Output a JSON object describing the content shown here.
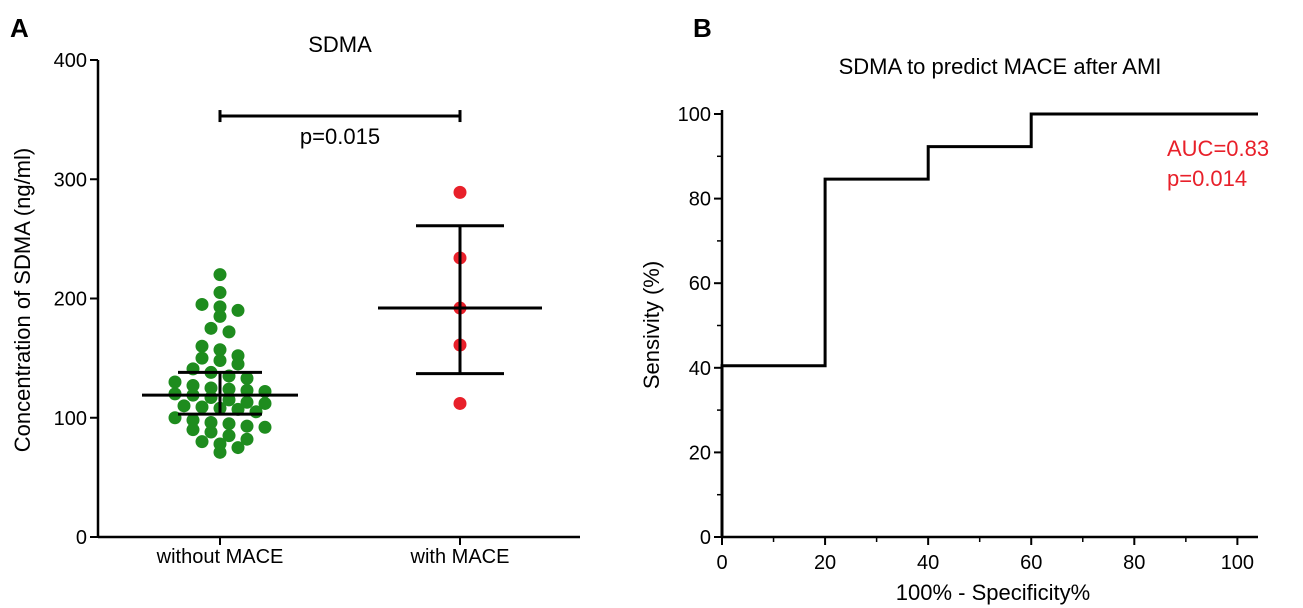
{
  "chart_data": [
    {
      "panel": "A",
      "type": "scatter",
      "title": "SDMA",
      "xlabel": "",
      "ylabel": "Concentration of SDMA (ng/ml)",
      "ylim": [
        0,
        400
      ],
      "yticks": [
        0,
        100,
        200,
        300,
        400
      ],
      "categories": [
        "without MACE",
        "with MACE"
      ],
      "grid": false,
      "colors": {
        "without MACE": "#1e8c1e",
        "with MACE": "#e8202a"
      },
      "series": [
        {
          "name": "without MACE",
          "values": [
            220,
            205,
            195,
            193,
            190,
            185,
            175,
            172,
            160,
            157,
            152,
            150,
            148,
            145,
            141,
            138,
            135,
            133,
            130,
            127,
            125,
            124,
            123,
            122,
            120,
            119,
            117,
            115,
            113,
            112,
            110,
            109,
            108,
            107,
            105,
            100,
            98,
            96,
            95,
            93,
            92,
            90,
            88,
            85,
            82,
            80,
            78,
            75,
            71
          ],
          "summary": {
            "center": 119,
            "lower": 103,
            "upper": 138
          }
        },
        {
          "name": "with MACE",
          "values": [
            289,
            234,
            192,
            161,
            112
          ],
          "summary": {
            "center": 192,
            "lower": 137,
            "upper": 261
          }
        }
      ],
      "annotations": [
        {
          "text": "p=0.015",
          "between": [
            "without MACE",
            "with MACE"
          ],
          "y": 353
        }
      ]
    },
    {
      "panel": "B",
      "type": "line",
      "title": "SDMA to predict MACE after AMI",
      "xlabel": "100% - Specificity%",
      "ylabel": "Sensivity (%)",
      "xlim": [
        0,
        104
      ],
      "ylim": [
        0,
        100
      ],
      "xticks": [
        0,
        20,
        40,
        60,
        80,
        100
      ],
      "yticks": [
        0,
        20,
        40,
        60,
        80,
        100
      ],
      "grid": false,
      "series": [
        {
          "x": [
            0,
            0,
            20,
            20,
            40,
            40,
            60,
            60,
            104
          ],
          "y": [
            0,
            40.5,
            40.5,
            84.6,
            84.6,
            92.3,
            92.3,
            100,
            100
          ]
        }
      ],
      "annotations": [
        "AUC=0.83",
        "p=0.014"
      ],
      "annotation_color": "#e8202a"
    }
  ]
}
